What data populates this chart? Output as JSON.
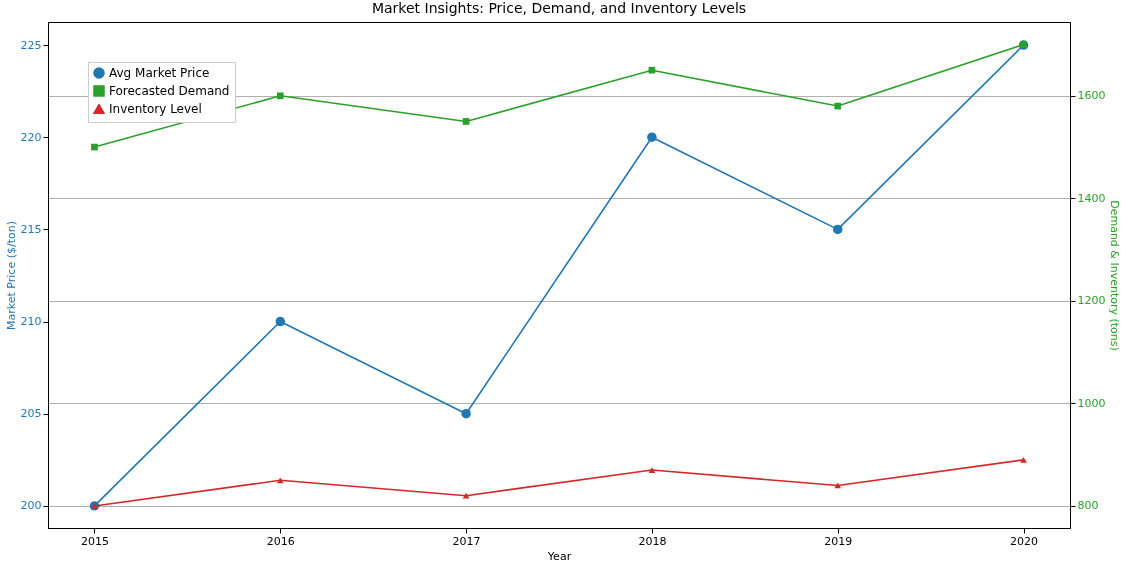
{
  "chart_data": {
    "type": "line",
    "title": "Market Insights: Price, Demand, and Inventory Levels",
    "xlabel": "Year",
    "ylabel": "Market Price ($/ton)",
    "y2label": "Demand & Inventory (tons)",
    "x": [
      2015,
      2016,
      2017,
      2018,
      2019,
      2020
    ],
    "series": [
      {
        "name": "Avg Market Price",
        "color": "#1f77b4",
        "marker": "circle",
        "values": [
          200,
          210,
          205,
          220,
          215,
          225
        ]
      },
      {
        "name": "Forecasted Demand",
        "color": "#2ca02c",
        "marker": "square",
        "axis": "y2",
        "values": [
          1500,
          1600,
          1550,
          1650,
          1580,
          1700
        ]
      },
      {
        "name": "Inventory Level",
        "color": "#d62728",
        "marker": "triangle",
        "axis": "y2",
        "values": [
          800,
          850,
          820,
          870,
          840,
          890
        ]
      }
    ],
    "xlim": [
      2014.75,
      2020.25
    ],
    "xticks": [
      2015,
      2016,
      2017,
      2018,
      2019,
      2020
    ],
    "ylim": [
      198.8,
      226.25
    ],
    "yticks": [
      200,
      205,
      210,
      215,
      220,
      225
    ],
    "y2lim": [
      757,
      1744
    ],
    "y2ticks": [
      800,
      1000,
      1200,
      1400,
      1600
    ],
    "grid": "y2",
    "legend": "top left"
  }
}
